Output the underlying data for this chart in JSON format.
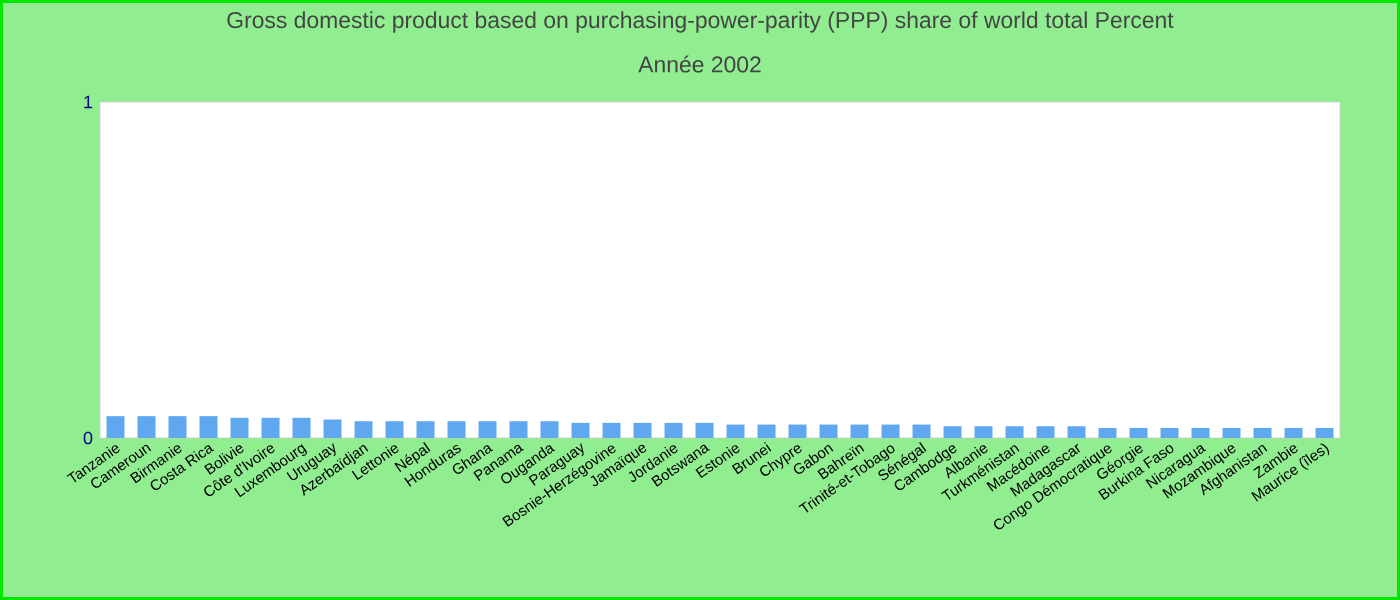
{
  "chart_data": {
    "type": "bar",
    "title": "Gross domestic product based on purchasing-power-parity (PPP) share of world total  Percent",
    "subtitle": "Année 2002",
    "categories": [
      "Tanzanie",
      "Cameroun",
      "Birmanie",
      "Costa Rica",
      "Bolivie",
      "Côte d'Ivoire",
      "Luxembourg",
      "Uruguay",
      "Azerbaïdjan",
      "Lettonie",
      "Népal",
      "Honduras",
      "Ghana",
      "Panama",
      "Ouganda",
      "Paraguay",
      "Bosnie-Herzégovine",
      "Jamaïque",
      "Jordanie",
      "Botswana",
      "Estonie",
      "Brunei",
      "Chypre",
      "Gabon",
      "Bahreïn",
      "Trinité-et-Tobago",
      "Sénégal",
      "Cambodge",
      "Albanie",
      "Turkménistan",
      "Macédoine",
      "Madagascar",
      "Congo Démocratique",
      "Géorgie",
      "Burkina Faso",
      "Nicaragua",
      "Mozambique",
      "Afghanistan",
      "Zambie",
      "Maurice (îles)"
    ],
    "values": [
      0.065,
      0.065,
      0.065,
      0.065,
      0.06,
      0.06,
      0.06,
      0.055,
      0.05,
      0.05,
      0.05,
      0.05,
      0.05,
      0.05,
      0.05,
      0.045,
      0.045,
      0.045,
      0.045,
      0.045,
      0.04,
      0.04,
      0.04,
      0.04,
      0.04,
      0.04,
      0.04,
      0.035,
      0.035,
      0.035,
      0.035,
      0.035,
      0.03,
      0.03,
      0.03,
      0.03,
      0.03,
      0.03,
      0.03,
      0.03
    ],
    "color": "#5fa8f0",
    "ylim": [
      0,
      1
    ],
    "yticks": [
      0,
      1
    ],
    "grid": false
  }
}
